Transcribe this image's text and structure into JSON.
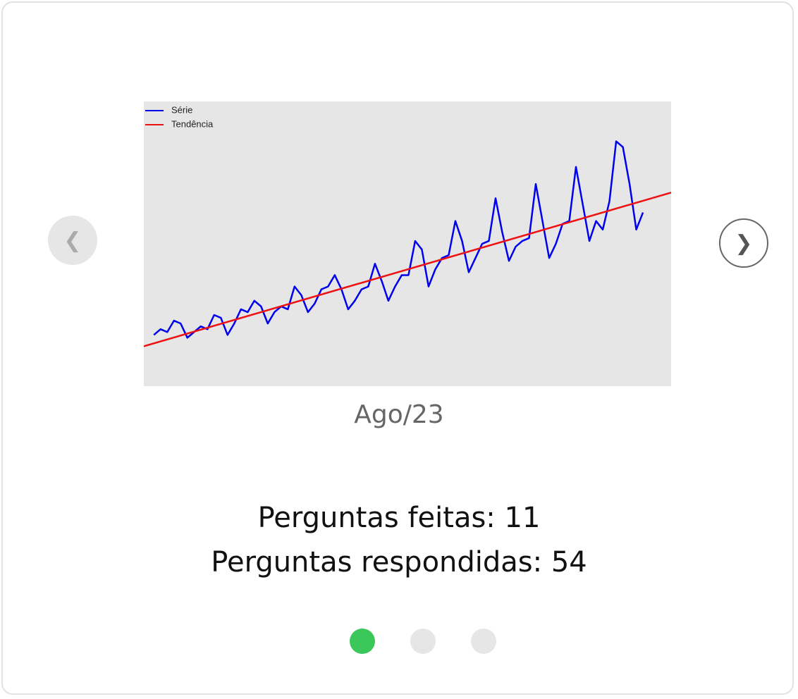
{
  "carousel": {
    "prev_icon": "❮",
    "next_icon": "❯",
    "caption": "Ago/23",
    "stats": [
      {
        "label": "Perguntas feitas:",
        "value": 11
      },
      {
        "label": "Perguntas respondidas:",
        "value": 54
      }
    ],
    "dots": [
      {
        "active": true
      },
      {
        "active": false
      },
      {
        "active": false
      }
    ]
  },
  "chart_data": {
    "type": "line",
    "xlim": [
      -1.5,
      77.2
    ],
    "ylim": [
      0,
      100
    ],
    "legend": "top-left",
    "series": [
      {
        "name": "Série",
        "color": "#0000ee",
        "values": [
          18,
          20,
          19,
          23,
          22,
          17,
          19,
          21,
          20,
          25,
          24,
          18,
          22,
          27,
          26,
          30,
          28,
          22,
          26,
          28,
          27,
          35,
          32,
          26,
          29,
          34,
          35,
          39,
          34,
          27,
          30,
          34,
          35,
          43,
          37,
          30,
          35,
          39,
          39,
          51,
          48,
          35,
          41,
          45,
          46,
          58,
          51,
          40,
          45,
          50,
          51,
          66,
          54,
          44,
          49,
          51,
          52,
          71,
          58,
          45,
          50,
          57,
          58,
          77,
          64,
          51,
          58,
          55,
          65,
          86,
          84,
          71,
          55,
          61
        ]
      },
      {
        "name": "Tendência",
        "color": "#ee1111",
        "x": [
          -1.5,
          77.2
        ],
        "values": [
          14,
          68
        ]
      }
    ]
  }
}
